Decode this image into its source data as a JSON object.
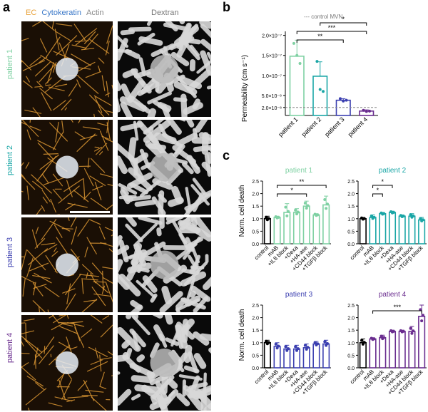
{
  "panels": {
    "a": "a",
    "b": "b",
    "c": "c"
  },
  "header": {
    "ec": "EC",
    "cytokeratin": "Cytokeratin",
    "actin": "Actin",
    "dextran": "Dextran"
  },
  "patients": [
    {
      "label": "patient 1",
      "color": "#7fd1a3"
    },
    {
      "label": "patient 2",
      "color": "#1aa6a6"
    },
    {
      "label": "patient 3",
      "color": "#3b3fb0"
    },
    {
      "label": "patient 4",
      "color": "#6a2d8f"
    }
  ],
  "colors": {
    "ec": "#e8a23a",
    "cytokeratin": "#3a78c8",
    "actin": "#888888"
  },
  "chart_data": [
    {
      "id": "b",
      "type": "bar",
      "ylabel": "Permeability (cm s⁻¹)",
      "legend": "--- control MVN",
      "reference_line": 2e-08,
      "yticks": [
        "2.0×10⁻⁸",
        "5.0×10⁻⁸",
        "1.0×10⁻⁷",
        "1.5×10⁻⁷",
        "2.0×10⁻⁷"
      ],
      "ytick_values": [
        2e-08,
        5e-08,
        1e-07,
        1.5e-07,
        2e-07
      ],
      "ylim": [
        0,
        2.1e-07
      ],
      "categories": [
        "patient 1",
        "patient 2",
        "patient 3",
        "patient 4"
      ],
      "values": [
        1.48e-07,
        9.8e-08,
        3.8e-08,
        1.1e-08
      ],
      "errors": [
        4e-08,
        3.6e-08,
        4e-09,
        3e-09
      ],
      "points": [
        [
          1.8e-07,
          1.5e-07,
          1.3e-07
        ],
        [
          1.35e-07,
          6.5e-08,
          6e-08
        ],
        [
          4.2e-08,
          3.6e-08,
          3.8e-08
        ],
        [
          1.3e-08,
          1e-08,
          1.1e-08
        ]
      ],
      "colors": [
        "#7fd1a3",
        "#1aa6a6",
        "#3b3fb0",
        "#6a2d8f"
      ],
      "significance": [
        {
          "from": 0,
          "to": 2,
          "label": "**"
        },
        {
          "from": 0,
          "to": 3,
          "label": "***"
        },
        {
          "from": 1,
          "to": 3,
          "label": "*"
        }
      ]
    },
    {
      "id": "c1",
      "type": "bar",
      "title": "patient 1",
      "ylabel": "Norm. cell death",
      "ylim": [
        0,
        2.5
      ],
      "yticks": [
        "0.0",
        "0.5",
        "1.0",
        "1.5",
        "2.0",
        "2.5"
      ],
      "categories": [
        "control",
        "mAB",
        "+IL8 block",
        "+Dexa",
        "+HA-ase",
        "+CD44 block",
        "+TGFβ block"
      ],
      "values": [
        1.0,
        1.05,
        1.25,
        1.25,
        1.5,
        1.15,
        1.55
      ],
      "errors": [
        0.1,
        0.05,
        0.35,
        0.15,
        0.2,
        0.05,
        0.35
      ],
      "color": "#7fd1a3",
      "control_color": "#000000",
      "significance": [
        {
          "from": 1,
          "to": 4,
          "label": "*"
        },
        {
          "from": 1,
          "to": 6,
          "label": "**"
        }
      ]
    },
    {
      "id": "c2",
      "type": "bar",
      "title": "patient 2",
      "ylabel": "",
      "ylim": [
        0,
        2.5
      ],
      "yticks": [
        "0.0",
        "0.5",
        "1.0",
        "1.5",
        "2.0",
        "2.5"
      ],
      "categories": [
        "control",
        "mAB",
        "+IL8 block",
        "+Dexa",
        "+HA-ase",
        "+CD44 block",
        "+TGFβ block"
      ],
      "values": [
        1.0,
        1.05,
        1.2,
        1.25,
        1.1,
        1.1,
        0.95
      ],
      "errors": [
        0.05,
        0.1,
        0.05,
        0.05,
        0.05,
        0.1,
        0.1
      ],
      "color": "#1aa6a6",
      "control_color": "#000000",
      "significance": [
        {
          "from": 1,
          "to": 2,
          "label": "*"
        },
        {
          "from": 1,
          "to": 3,
          "label": "*"
        }
      ]
    },
    {
      "id": "c3",
      "type": "bar",
      "title": "patient 3",
      "ylabel": "Norm. cell death",
      "ylim": [
        0,
        2.5
      ],
      "yticks": [
        "0.0",
        "0.5",
        "1.0",
        "1.5",
        "2.0",
        "2.5"
      ],
      "categories": [
        "control",
        "mAB",
        "+IL8 block",
        "+Dexa",
        "+HA-ase",
        "+CD44 block",
        "+TGFβ block"
      ],
      "values": [
        1.0,
        0.85,
        0.75,
        0.75,
        0.8,
        0.95,
        0.95
      ],
      "errors": [
        0.1,
        0.15,
        0.15,
        0.15,
        0.15,
        0.1,
        0.15
      ],
      "color": "#3b3fb0",
      "control_color": "#000000",
      "significance": []
    },
    {
      "id": "c4",
      "type": "bar",
      "title": "patient 4",
      "ylabel": "",
      "ylim": [
        0,
        2.5
      ],
      "yticks": [
        "0.0",
        "0.5",
        "1.0",
        "1.5",
        "2.0",
        "2.5"
      ],
      "categories": [
        "control",
        "mAB",
        "+IL8 block",
        "+Dexa",
        "+HA-ase",
        "+CD44 block",
        "+TGFβ block"
      ],
      "values": [
        1.0,
        1.15,
        1.2,
        1.45,
        1.45,
        1.45,
        2.05
      ],
      "errors": [
        0.15,
        0.05,
        0.1,
        0.05,
        0.05,
        0.2,
        0.45
      ],
      "color": "#6a2d8f",
      "control_color": "#000000",
      "significance": [
        {
          "from": 1,
          "to": 6,
          "label": "***"
        }
      ]
    }
  ]
}
